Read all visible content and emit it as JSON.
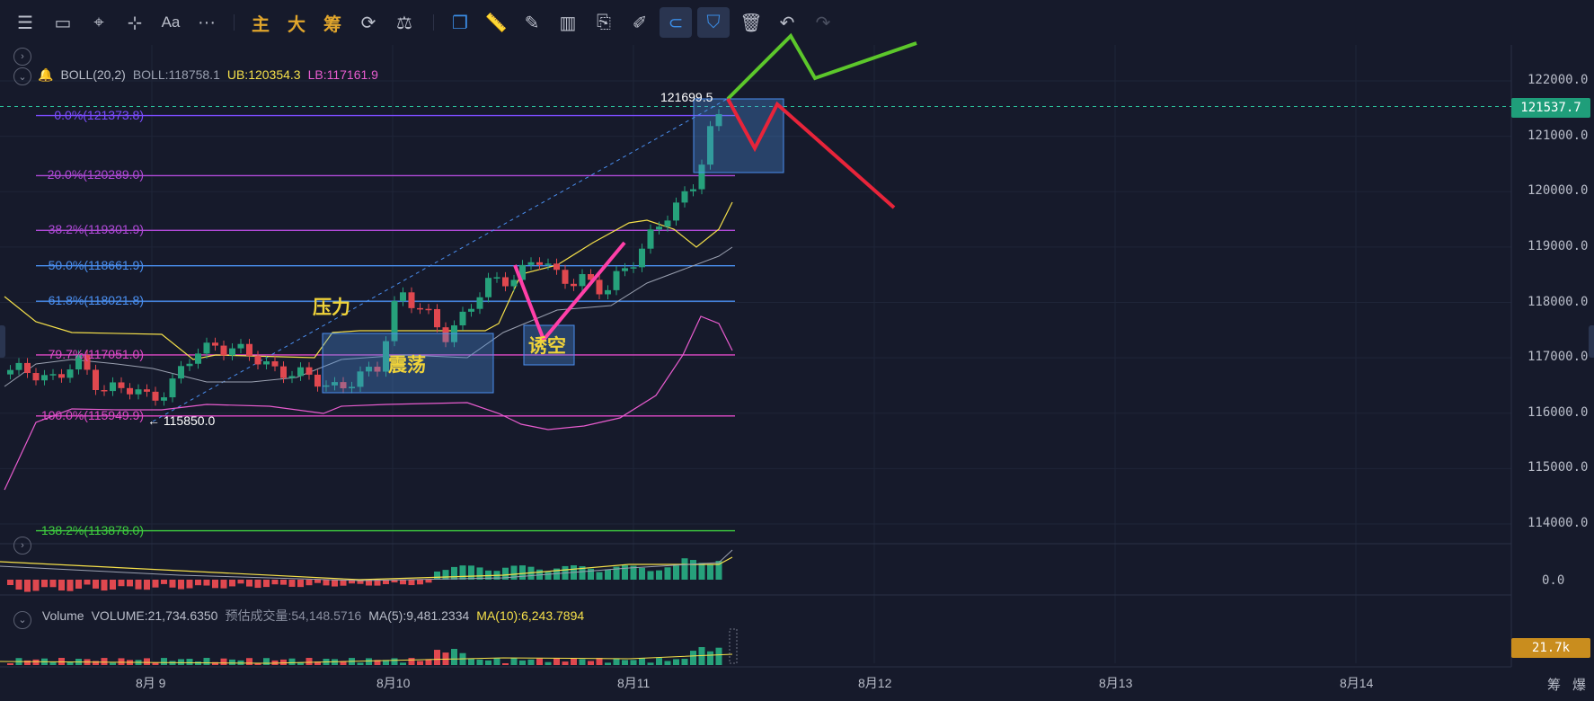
{
  "toolbar": {
    "items": [
      {
        "name": "menu-icon",
        "glyph": "☰"
      },
      {
        "name": "rectangle-icon",
        "glyph": "▭"
      },
      {
        "name": "cursor-icon",
        "glyph": "⌖"
      },
      {
        "name": "crosshair-line-icon",
        "glyph": "⊹"
      },
      {
        "name": "text-tool",
        "glyph": "Aa"
      },
      {
        "name": "more-icon",
        "glyph": "···"
      }
    ],
    "cn_labels": [
      "主",
      "大",
      "筹"
    ]
  },
  "indicators": {
    "boll_name": "BOLL(20,2)",
    "boll_mid": "BOLL:118758.1",
    "boll_ub": "UB:120354.3",
    "boll_lb": "LB:117161.9",
    "volume_name": "Volume",
    "volume_value": "VOLUME:21,734.6350",
    "est_volume": "预估成交量:54,148.5716",
    "ma5": "MA(5):9,481.2334",
    "ma10": "MA(10):6,243.7894"
  },
  "fib_levels": [
    {
      "label": "0.0%(121373.8)",
      "price": 121373.8,
      "color": "#7c4dff"
    },
    {
      "label": "20.0%(120289.0)",
      "price": 120289.0,
      "color": "#b04ad8"
    },
    {
      "label": "38.2%(119301.9)",
      "price": 119301.9,
      "color": "#b04ad8"
    },
    {
      "label": "50.0%(118661.9)",
      "price": 118661.9,
      "color": "#4a8ff0"
    },
    {
      "label": "61.8%(118021.8)",
      "price": 118021.8,
      "color": "#4a8ff0"
    },
    {
      "label": "79.7%(117051.0)",
      "price": 117051.0,
      "color": "#e04ac8"
    },
    {
      "label": "100.0%(115949.9)",
      "price": 115949.9,
      "color": "#e04ac8"
    },
    {
      "label": "138.2%(113878.0)",
      "price": 113878.0,
      "color": "#3fcf3f"
    }
  ],
  "annotations": {
    "pressure": "压力",
    "consolidation": "震荡",
    "bear_trap": "诱空",
    "high_price": "121699.5",
    "low_price": "← 115850.0"
  },
  "price_axis": {
    "ticks": [
      "122000.0",
      "121000.0",
      "120000.0",
      "119000.0",
      "118000.0",
      "117000.0",
      "116000.0",
      "115000.0",
      "114000.0"
    ],
    "current_price": "121537.7",
    "current_color": "#1f9e7a",
    "volume_zero": "0.0",
    "volume_tag": "21.7k",
    "volume_tag_color": "#c98d1e"
  },
  "date_axis": [
    "8月 9",
    "8月10",
    "8月11",
    "8月12",
    "8月13",
    "8月14"
  ],
  "footer_icons": [
    "筹",
    "爆"
  ],
  "chart_data": {
    "type": "candlestick",
    "x": [
      "8月 9",
      "8月10",
      "8月11",
      "8月12",
      "8月13",
      "8月14"
    ],
    "ylim": [
      113500,
      122400
    ],
    "closes_approx": [
      116700,
      116800,
      116600,
      116900,
      116500,
      116400,
      116300,
      116500,
      117000,
      117300,
      117100,
      116900,
      116800,
      116600,
      116500,
      116600,
      116700,
      118300,
      117800,
      117400,
      117900,
      118300,
      118500,
      118800,
      118400,
      118500,
      118100,
      118700,
      119200,
      119600,
      120300,
      121537.7
    ],
    "colors": {
      "up": "#26a17b",
      "down": "#e0484f"
    }
  }
}
